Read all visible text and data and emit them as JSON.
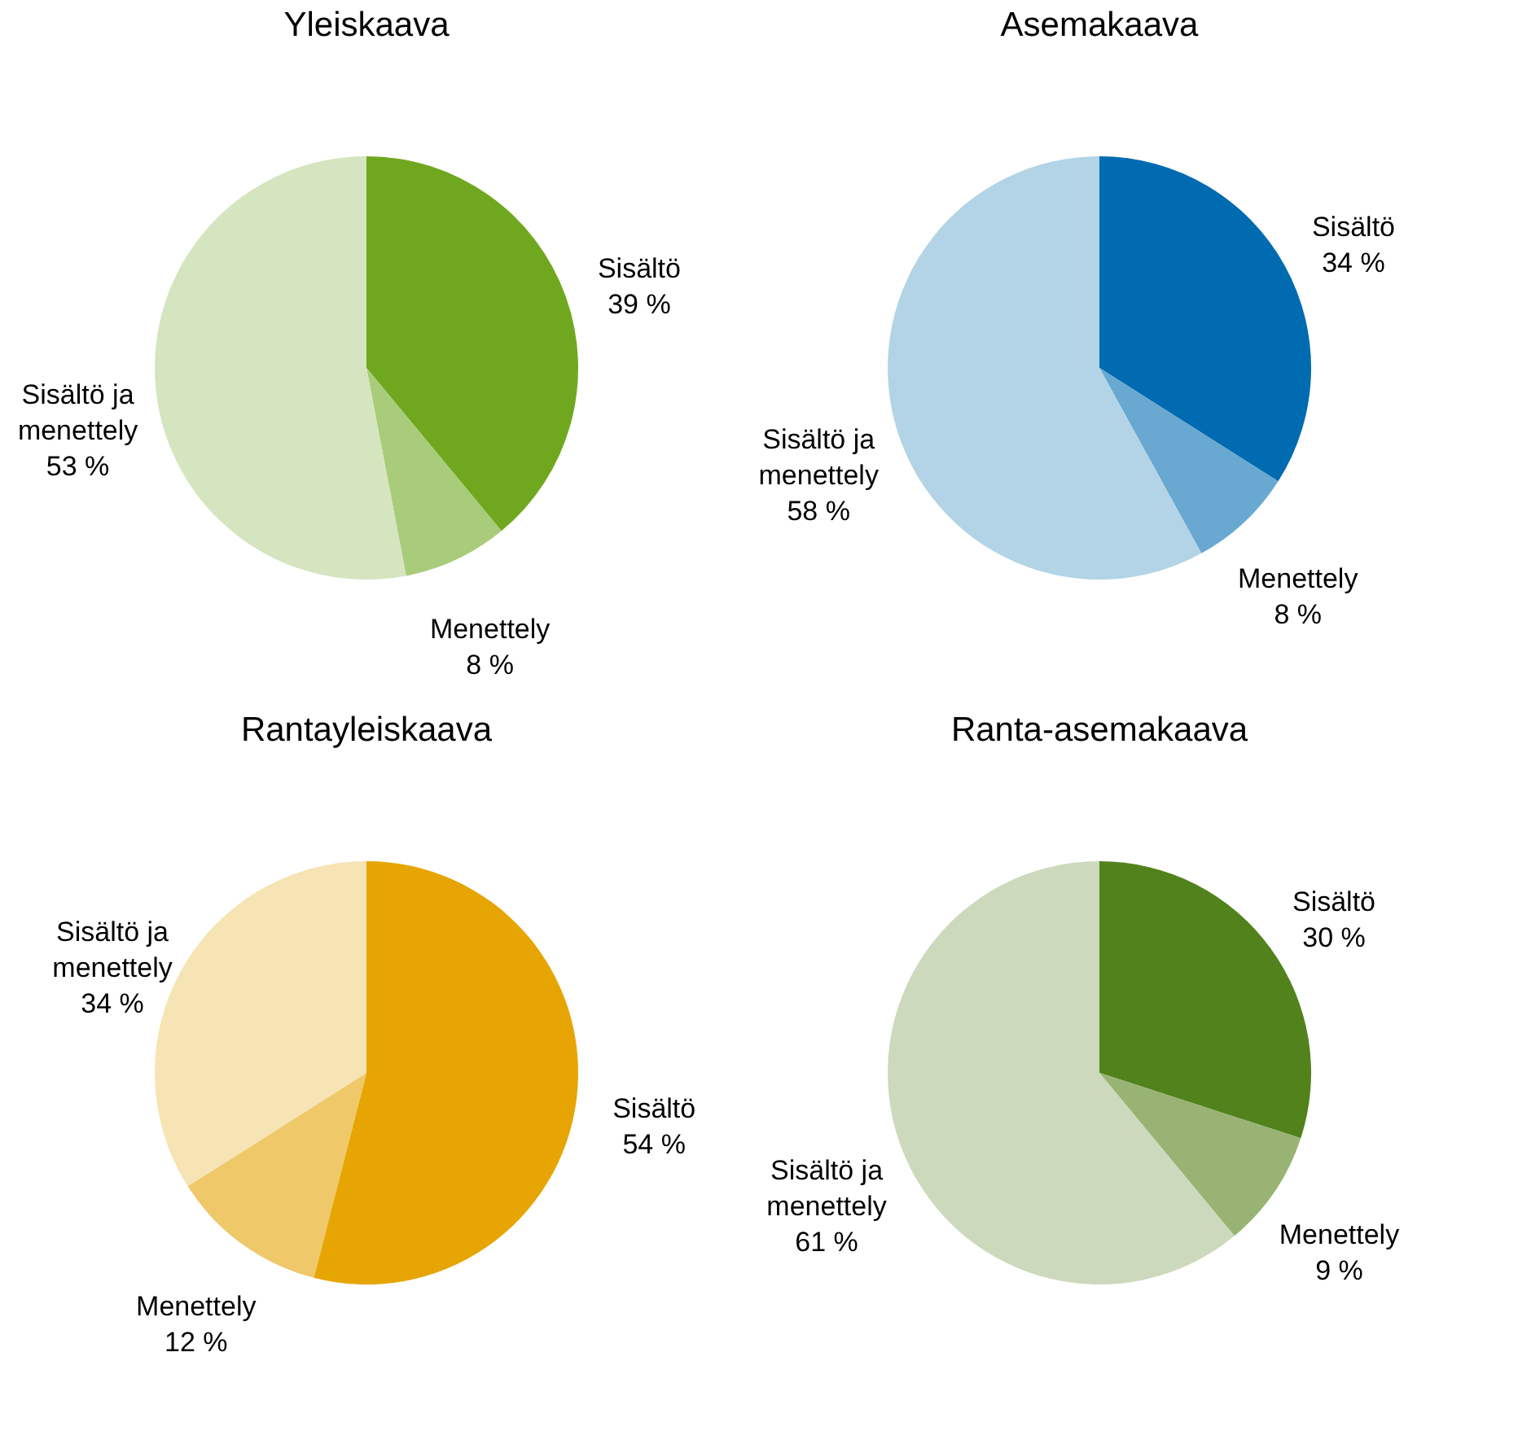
{
  "chart_data": [
    {
      "type": "pie",
      "title": "Yleiskaava",
      "categories": [
        "Sisältö",
        "Menettely",
        "Sisältö ja menettely"
      ],
      "values": [
        39,
        8,
        53
      ],
      "value_labels": [
        "39 %",
        "8 %",
        "53 %"
      ],
      "colors": [
        "#6fa81f",
        "#a9cc7a",
        "#d5e5bf"
      ]
    },
    {
      "type": "pie",
      "title": "Asemakaava",
      "categories": [
        "Sisältö",
        "Menettely",
        "Sisältö ja menettely"
      ],
      "values": [
        34,
        8,
        58
      ],
      "value_labels": [
        "34 %",
        "8 %",
        "58 %"
      ],
      "colors": [
        "#006bb0",
        "#68a8d1",
        "#b3d4e6"
      ]
    },
    {
      "type": "pie",
      "title": "Rantayleiskaava",
      "categories": [
        "Sisältö",
        "Menettely",
        "Sisältö ja menettely"
      ],
      "values": [
        54,
        12,
        34
      ],
      "value_labels": [
        "54 %",
        "12 %",
        "34 %"
      ],
      "colors": [
        "#e6a502",
        "#efc86a",
        "#f6e4b4"
      ]
    },
    {
      "type": "pie",
      "title": "Ranta-asemakaava",
      "categories": [
        "Sisältö",
        "Menettely",
        "Sisältö ja menettely"
      ],
      "values": [
        30,
        9,
        61
      ],
      "value_labels": [
        "30 %",
        "9 %",
        "61 %"
      ],
      "colors": [
        "#52821c",
        "#98b373",
        "#ccd9bc"
      ]
    }
  ]
}
